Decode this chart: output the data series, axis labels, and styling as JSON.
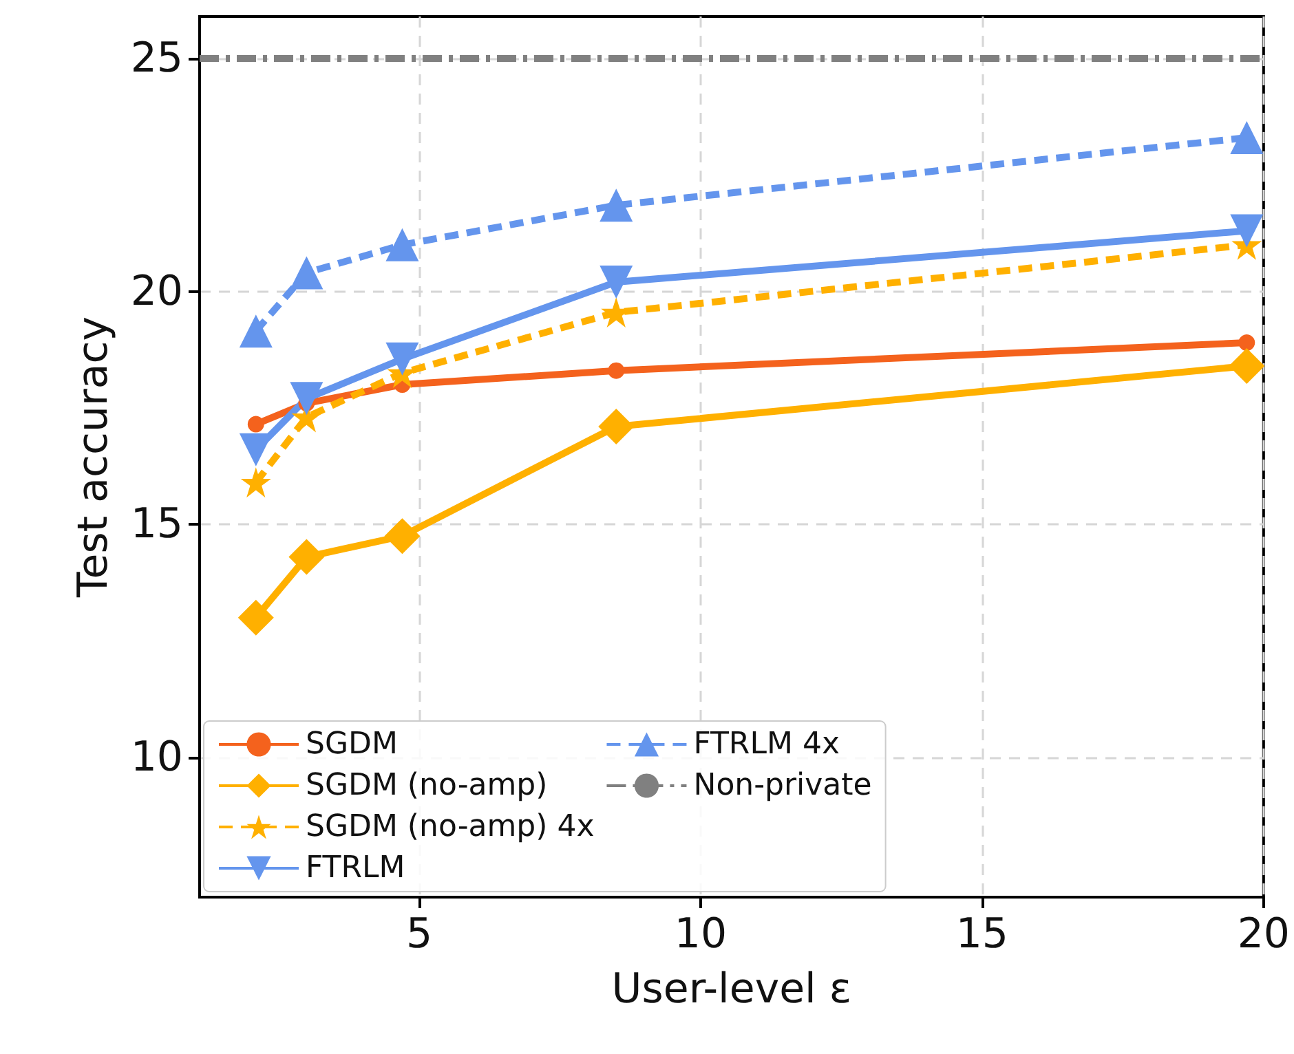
{
  "chart_data": {
    "type": "line",
    "xlabel": "User-level ε",
    "ylabel": "Test accuracy",
    "x": [
      2.1,
      3.0,
      4.7,
      8.5,
      19.7
    ],
    "xlim": [
      1.1,
      20
    ],
    "xticks": [
      5,
      10,
      15,
      20
    ],
    "ylim": [
      7,
      25.9
    ],
    "yticks": [
      10,
      15,
      20,
      25
    ],
    "grid": true,
    "legend": "bottom",
    "series": [
      {
        "name": "SGDM",
        "color": "#f4621d",
        "marker": "circle",
        "line_style": "solid",
        "values": [
          17.15,
          17.6,
          18.0,
          18.3,
          18.9
        ]
      },
      {
        "name": "SGDM (no-amp)",
        "color": "#ffb000",
        "marker": "diamond",
        "line_style": "solid",
        "values": [
          13.0,
          14.3,
          14.75,
          17.1,
          18.4
        ]
      },
      {
        "name": "SGDM (no-amp) 4x",
        "color": "#ffb000",
        "marker": "star",
        "line_style": "dashed",
        "values": [
          15.9,
          17.3,
          18.25,
          19.55,
          21.0
        ]
      },
      {
        "name": "FTRLM",
        "color": "#6495ed",
        "marker": "triangle-down",
        "line_style": "solid",
        "values": [
          16.6,
          17.7,
          18.55,
          20.2,
          21.3
        ]
      },
      {
        "name": "FTRLM 4x",
        "color": "#6495ed",
        "marker": "triangle",
        "line_style": "dashed",
        "values": [
          19.15,
          20.4,
          21.0,
          21.85,
          23.3
        ]
      },
      {
        "name": "Non-private",
        "color": "#808080",
        "marker": "none",
        "line_style": "dashdot",
        "x": [
          1.1,
          20
        ],
        "values": [
          25,
          25
        ]
      }
    ]
  }
}
